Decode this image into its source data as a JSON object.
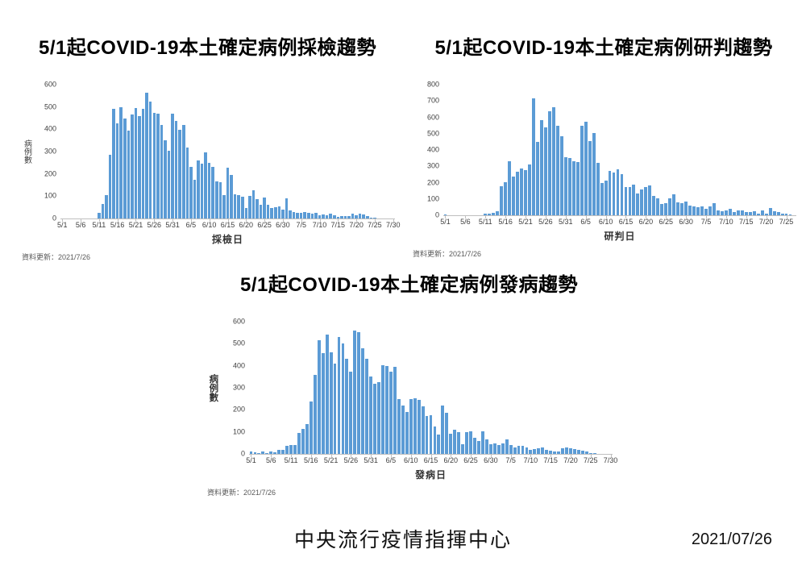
{
  "footer": {
    "organization": "中央流行疫情指揮中心",
    "date": "2021/07/26"
  },
  "colors": {
    "bar": "#5B9BD5",
    "axis": "#BFBFBF",
    "tick_text": "#404040",
    "note_text": "#595959"
  },
  "chart_data": [
    {
      "type": "bar",
      "title": "5/1起COVID-19本土確定病例採檢趨勢",
      "xlabel": "採檢日",
      "ylabel": "病例數",
      "update_note": "資料更新：2021/7/26",
      "start_date": "5/1",
      "end_date": "7/30",
      "ylim": [
        0,
        600
      ],
      "ytick_step": 100,
      "grid": false,
      "legend": false,
      "xtick_every": 5,
      "xticks": [
        "5/1",
        "5/6",
        "5/11",
        "5/16",
        "5/21",
        "5/26",
        "5/31",
        "6/5",
        "6/10",
        "6/15",
        "6/20",
        "6/25",
        "6/30",
        "7/5",
        "7/10",
        "7/15",
        "7/20",
        "7/25",
        "7/30"
      ],
      "values": [
        0,
        0,
        0,
        0,
        0,
        0,
        0,
        0,
        0,
        0,
        25,
        65,
        105,
        285,
        490,
        425,
        500,
        448,
        395,
        468,
        495,
        460,
        490,
        565,
        525,
        475,
        470,
        420,
        352,
        303,
        470,
        437,
        398,
        420,
        317,
        230,
        172,
        262,
        247,
        295,
        248,
        230,
        168,
        162,
        105,
        228,
        195,
        107,
        105,
        97,
        47,
        103,
        128,
        88,
        63,
        95,
        63,
        47,
        52,
        53,
        40,
        90,
        38,
        28,
        25,
        25,
        28,
        25,
        22,
        25,
        15,
        18,
        15,
        20,
        15,
        8,
        10,
        12,
        10,
        22,
        15,
        20,
        18,
        12,
        5,
        2,
        0,
        0,
        0,
        0,
        0
      ]
    },
    {
      "type": "bar",
      "title": "5/1起COVID-19本土確定病例研判趨勢",
      "xlabel": "研判日",
      "ylabel": "",
      "update_note": "資料更新：2021/7/26",
      "start_date": "5/1",
      "end_date": "7/27",
      "ylim": [
        0,
        800
      ],
      "ytick_step": 100,
      "grid": false,
      "legend": false,
      "xtick_every": 5,
      "xticks": [
        "5/1",
        "5/6",
        "5/11",
        "5/16",
        "5/21",
        "5/26",
        "5/31",
        "6/5",
        "6/10",
        "6/15",
        "6/20",
        "6/25",
        "6/30",
        "7/5",
        "7/10",
        "7/15",
        "7/20",
        "7/25"
      ],
      "values": [
        5,
        0,
        0,
        0,
        0,
        0,
        0,
        0,
        0,
        0,
        8,
        12,
        15,
        25,
        180,
        205,
        330,
        238,
        265,
        285,
        278,
        310,
        715,
        450,
        585,
        540,
        635,
        662,
        550,
        485,
        355,
        350,
        330,
        328,
        550,
        575,
        455,
        505,
        320,
        200,
        212,
        270,
        260,
        283,
        250,
        175,
        175,
        188,
        132,
        160,
        175,
        182,
        120,
        105,
        70,
        75,
        102,
        130,
        80,
        75,
        85,
        60,
        55,
        50,
        55,
        42,
        55,
        75,
        30,
        25,
        28,
        38,
        18,
        28,
        28,
        22,
        18,
        25,
        12,
        28,
        8,
        45,
        25,
        20,
        10,
        8,
        5,
        0
      ]
    },
    {
      "type": "bar",
      "title": "5/1起COVID-19本土確定病例發病趨勢",
      "xlabel": "發病日",
      "ylabel": "病例數",
      "update_note": "資料更新：2021/7/26",
      "start_date": "5/1",
      "end_date": "7/30",
      "ylim": [
        0,
        600
      ],
      "ytick_step": 100,
      "grid": false,
      "legend": false,
      "xtick_every": 5,
      "xticks": [
        "5/1",
        "5/6",
        "5/11",
        "5/16",
        "5/21",
        "5/26",
        "5/31",
        "6/5",
        "6/10",
        "6/15",
        "6/20",
        "6/25",
        "6/30",
        "7/5",
        "7/10",
        "7/15",
        "7/20",
        "7/25",
        "7/30"
      ],
      "values": [
        12,
        8,
        5,
        10,
        3,
        10,
        8,
        18,
        20,
        38,
        40,
        42,
        95,
        115,
        135,
        238,
        360,
        515,
        458,
        543,
        462,
        410,
        530,
        503,
        432,
        375,
        560,
        553,
        478,
        430,
        350,
        318,
        325,
        403,
        400,
        375,
        395,
        250,
        220,
        190,
        250,
        252,
        245,
        215,
        172,
        177,
        125,
        88,
        220,
        188,
        93,
        110,
        98,
        45,
        100,
        103,
        75,
        60,
        103,
        65,
        45,
        48,
        42,
        48,
        65,
        40,
        30,
        35,
        38,
        28,
        20,
        22,
        25,
        30,
        20,
        15,
        12,
        10,
        25,
        28,
        25,
        22,
        18,
        15,
        10,
        5,
        3,
        0,
        0,
        0,
        0
      ]
    }
  ]
}
